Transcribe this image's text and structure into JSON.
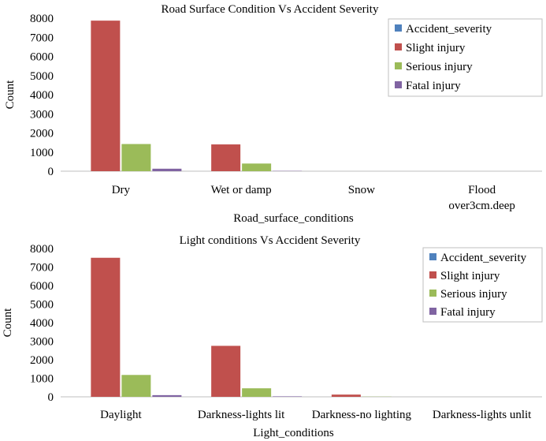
{
  "chart_data": [
    {
      "type": "bar",
      "title": "Road Surface Condition Vs Accident Severity",
      "xlabel": "Road_surface_conditions",
      "ylabel": "Count",
      "ylim": [
        0,
        8000
      ],
      "yticks": [
        0,
        1000,
        2000,
        3000,
        4000,
        5000,
        6000,
        7000,
        8000
      ],
      "categories": [
        [
          "Dry"
        ],
        [
          "Wet or damp"
        ],
        [
          "Snow"
        ],
        [
          "Flood",
          "over3cm.deep"
        ]
      ],
      "legend_position": "top-right",
      "series": [
        {
          "name": "Accident_severity",
          "color": "#4F81BD",
          "values": [
            0,
            0,
            0,
            0
          ]
        },
        {
          "name": "Slight injury",
          "color": "#C0504D",
          "values": [
            7870,
            1400,
            0,
            0
          ]
        },
        {
          "name": "Serious injury",
          "color": "#9BBB59",
          "values": [
            1420,
            400,
            0,
            0
          ]
        },
        {
          "name": "Fatal injury",
          "color": "#8064A2",
          "values": [
            130,
            15,
            0,
            0
          ]
        }
      ]
    },
    {
      "type": "bar",
      "title": "Light conditions Vs Accident Severity",
      "xlabel": "Light_conditions",
      "ylabel": "Count",
      "ylim": [
        0,
        8000
      ],
      "yticks": [
        0,
        1000,
        2000,
        3000,
        4000,
        5000,
        6000,
        7000,
        8000
      ],
      "categories": [
        [
          "Daylight"
        ],
        [
          "Darkness-lights lit"
        ],
        [
          "Darkness-no lighting"
        ],
        [
          "Darkness-lights unlit"
        ]
      ],
      "legend_position": "top-right",
      "series": [
        {
          "name": "Accident_severity",
          "color": "#4F81BD",
          "values": [
            0,
            0,
            0,
            0
          ]
        },
        {
          "name": "Slight injury",
          "color": "#C0504D",
          "values": [
            7500,
            2750,
            120,
            0
          ]
        },
        {
          "name": "Serious injury",
          "color": "#9BBB59",
          "values": [
            1180,
            460,
            10,
            0
          ]
        },
        {
          "name": "Fatal injury",
          "color": "#8064A2",
          "values": [
            90,
            25,
            0,
            0
          ]
        }
      ]
    }
  ]
}
